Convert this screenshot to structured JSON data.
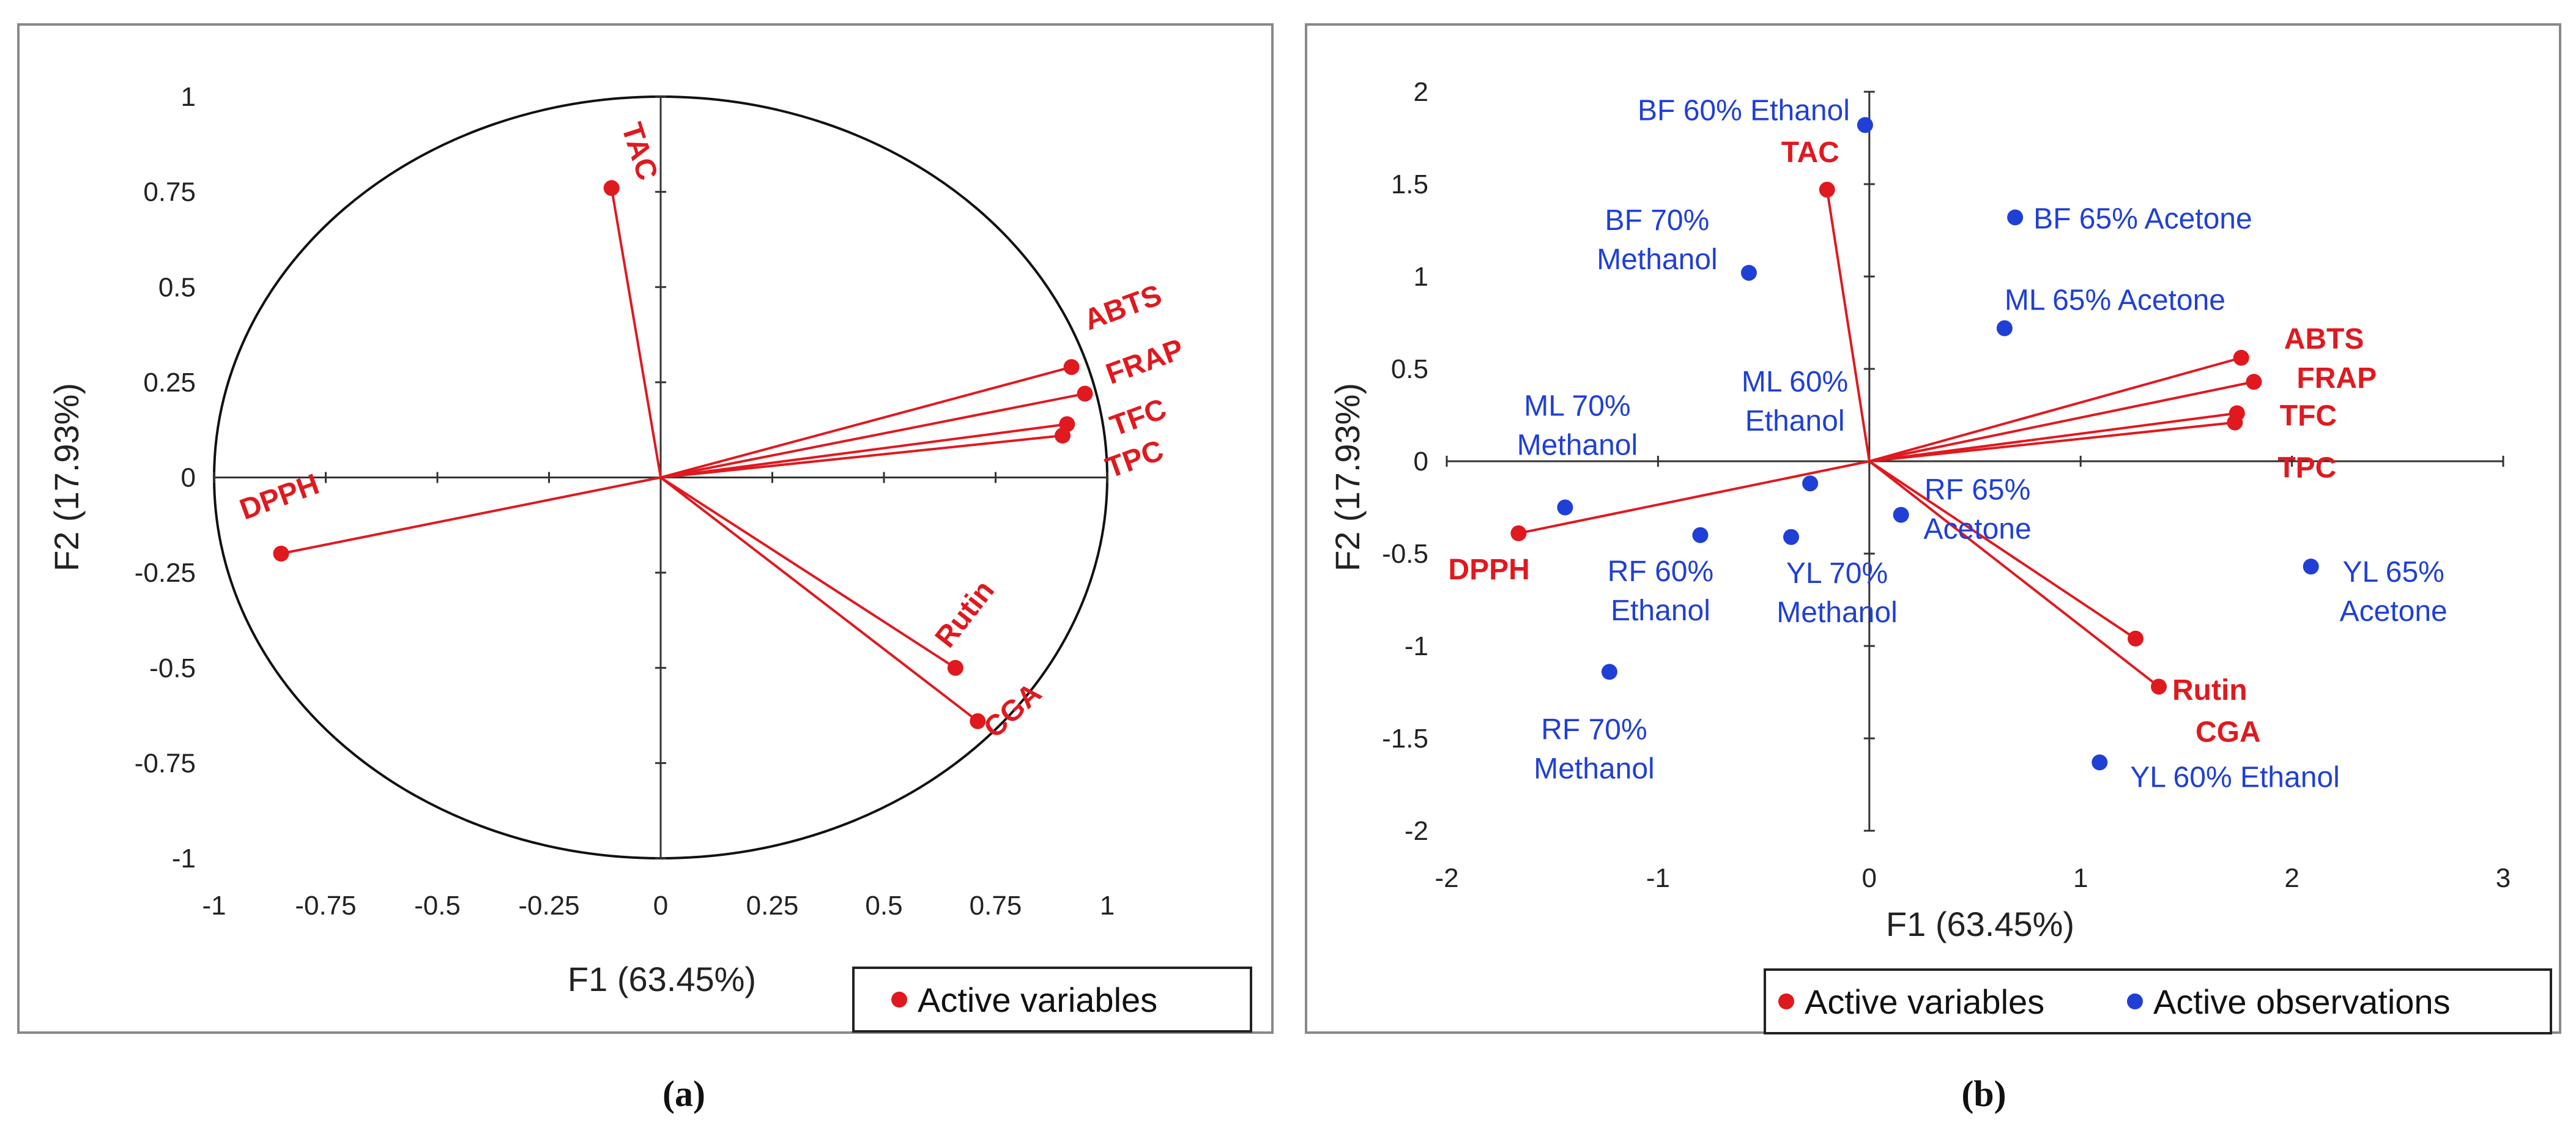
{
  "colors": {
    "variable": "#e0191f",
    "observation": "#1f3fd6",
    "axis": "#333333",
    "frame": "#888888"
  },
  "chart_data": [
    {
      "type": "scatter",
      "panel": "(a)",
      "title": "",
      "xlabel": "F1 (63.45%)",
      "ylabel": "F2 (17.93%)",
      "xlim": [
        -1,
        1
      ],
      "ylim": [
        -1,
        1
      ],
      "xticks": [
        -1,
        -0.75,
        -0.5,
        -0.25,
        0,
        0.25,
        0.5,
        0.75,
        1
      ],
      "yticks": [
        -1,
        -0.75,
        -0.5,
        -0.25,
        0,
        0.25,
        0.5,
        0.75,
        1
      ],
      "xtick_labels": [
        "-1",
        "-0.75",
        "-0.5",
        "-0.25",
        "0",
        "0.25",
        "0.5",
        "0.75",
        "1"
      ],
      "ytick_labels": [
        "-1",
        "-0.75",
        "-0.5",
        "-0.25",
        "0",
        "0.25",
        "0.5",
        "0.75",
        "1"
      ],
      "correlation_circle": true,
      "legend": [
        "Active variables"
      ],
      "variables": [
        {
          "name": "TAC",
          "x": -0.11,
          "y": 0.76
        },
        {
          "name": "ABTS",
          "x": 0.92,
          "y": 0.29
        },
        {
          "name": "FRAP",
          "x": 0.95,
          "y": 0.22
        },
        {
          "name": "TFC",
          "x": 0.91,
          "y": 0.14
        },
        {
          "name": "TPC",
          "x": 0.9,
          "y": 0.11
        },
        {
          "name": "DPPH",
          "x": -0.85,
          "y": -0.2
        },
        {
          "name": "Rutin",
          "x": 0.66,
          "y": -0.5
        },
        {
          "name": "CGA",
          "x": 0.71,
          "y": -0.64
        }
      ],
      "observations": []
    },
    {
      "type": "scatter",
      "panel": "(b)",
      "title": "",
      "xlabel": "F1 (63.45%)",
      "ylabel": "F2 (17.93%)",
      "xlim": [
        -2,
        3
      ],
      "ylim": [
        -2,
        2
      ],
      "xticks": [
        -2,
        -1,
        0,
        1,
        2,
        3
      ],
      "yticks": [
        -2,
        -1.5,
        -1,
        -0.5,
        0,
        0.5,
        1,
        1.5,
        2
      ],
      "xtick_labels": [
        "-2",
        "-1",
        "0",
        "1",
        "2",
        "3"
      ],
      "ytick_labels": [
        "-2",
        "-1.5",
        "-1",
        "-0.5",
        "0",
        "0.5",
        "1",
        "1.5",
        "2"
      ],
      "correlation_circle": false,
      "legend": [
        "Active variables",
        "Active observations"
      ],
      "variables": [
        {
          "name": "TAC",
          "x": -0.2,
          "y": 1.47
        },
        {
          "name": "ABTS",
          "x": 1.76,
          "y": 0.56
        },
        {
          "name": "FRAP",
          "x": 1.82,
          "y": 0.43
        },
        {
          "name": "TFC",
          "x": 1.74,
          "y": 0.26
        },
        {
          "name": "TPC",
          "x": 1.73,
          "y": 0.21
        },
        {
          "name": "DPPH",
          "x": -1.66,
          "y": -0.39
        },
        {
          "name": "Rutin",
          "x": 1.26,
          "y": -0.96
        },
        {
          "name": "CGA",
          "x": 1.37,
          "y": -1.22
        }
      ],
      "observations": [
        {
          "name": "BF 60% Ethanol",
          "x": -0.02,
          "y": 1.82
        },
        {
          "name": "BF 65% Acetone",
          "x": 0.69,
          "y": 1.32
        },
        {
          "name": "BF 70% Methanol",
          "x": -0.57,
          "y": 1.02
        },
        {
          "name": "ML 65% Acetone",
          "x": 0.64,
          "y": 0.72
        },
        {
          "name": "ML 60% Ethanol",
          "x": -0.28,
          "y": -0.12
        },
        {
          "name": "ML 70% Methanol",
          "x": -1.44,
          "y": -0.25
        },
        {
          "name": "RF 65% Acetone",
          "x": 0.15,
          "y": -0.29
        },
        {
          "name": "RF 60% Ethanol",
          "x": -0.8,
          "y": -0.4
        },
        {
          "name": "YL 70% Methanol",
          "x": -0.37,
          "y": -0.41
        },
        {
          "name": "YL 65% Acetone",
          "x": 2.09,
          "y": -0.57
        },
        {
          "name": "RF 70% Methanol",
          "x": -1.23,
          "y": -1.14
        },
        {
          "name": "YL 60% Ethanol",
          "x": 1.09,
          "y": -1.63
        }
      ]
    }
  ],
  "panel_a": {
    "caption": "(a)",
    "xlabel": "F1 (63.45%)",
    "ylabel": "F2 (17.93%)",
    "legend_label": "Active variables"
  },
  "panel_b": {
    "caption": "(b)",
    "xlabel": "F1 (63.45%)",
    "ylabel": "F2 (17.93%)",
    "legend_variables": "Active variables",
    "legend_observations": "Active observations"
  }
}
